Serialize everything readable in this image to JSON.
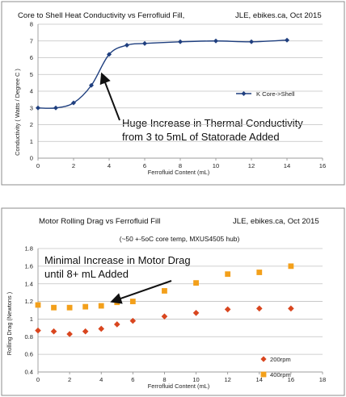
{
  "chart_data": [
    {
      "type": "line",
      "title": "Core to Shell Heat Conductivity vs Ferrofluid Fill,",
      "credit": "JLE, ebikes.ca, Oct 2015",
      "xlabel": "Ferrofluid Content (mL)",
      "ylabel": "Conductivity ( Watts / Degree C )",
      "xlim": [
        0,
        16
      ],
      "ylim": [
        0,
        8
      ],
      "xticks": [
        "0",
        "2",
        "4",
        "6",
        "8",
        "10",
        "12",
        "14",
        "16"
      ],
      "yticks": [
        "0",
        "1",
        "2",
        "3",
        "4",
        "5",
        "6",
        "7",
        "8"
      ],
      "grid": "horizontal",
      "legend_position": "right",
      "series": [
        {
          "name": "K Core->Shell",
          "color": "#1f3f7f",
          "marker": "diamond",
          "x": [
            0,
            1,
            2,
            3,
            4,
            5,
            6,
            8,
            10,
            12,
            14
          ],
          "y": [
            3.0,
            3.0,
            3.3,
            4.35,
            6.2,
            6.75,
            6.85,
            6.95,
            7.0,
            6.95,
            7.05
          ]
        }
      ],
      "annotation": {
        "lines": [
          "Huge Increase in Thermal Conductivity",
          "from 3 to 5mL of Statorade Added"
        ],
        "arrow_to": [
          3.6,
          5.0
        ]
      }
    },
    {
      "type": "scatter",
      "title": "Motor Rolling Drag vs Ferrofluid Fill",
      "credit": "JLE, ebikes.ca, Oct 2015",
      "subtitle": "(~50 +-5oC core temp, MXUS4505 hub)",
      "xlabel": "Ferrofluid Content (mL)",
      "ylabel": "Rolling Drag (Newtons )",
      "xlim": [
        0,
        18
      ],
      "ylim": [
        0.4,
        1.8
      ],
      "xticks": [
        "0",
        "2",
        "4",
        "6",
        "8",
        "10",
        "12",
        "14",
        "16",
        "18"
      ],
      "yticks": [
        "0.4",
        "0.6",
        "0.8",
        "1",
        "1.2",
        "1.4",
        "1.6",
        "1.8"
      ],
      "grid": "horizontal",
      "legend_position": "bottom-right",
      "series": [
        {
          "name": "200rpm",
          "color": "#d9461f",
          "marker": "diamond",
          "x": [
            0,
            1,
            2,
            3,
            4,
            5,
            6,
            8,
            10,
            12,
            14,
            16
          ],
          "y": [
            0.87,
            0.86,
            0.83,
            0.86,
            0.89,
            0.94,
            0.98,
            1.03,
            1.07,
            1.11,
            1.12,
            1.12
          ]
        },
        {
          "name": "400rpm",
          "color": "#f3a01b",
          "marker": "square",
          "x": [
            0,
            1,
            2,
            3,
            4,
            5,
            6,
            8,
            10,
            12,
            14,
            16
          ],
          "y": [
            1.16,
            1.13,
            1.13,
            1.14,
            1.15,
            1.19,
            1.2,
            1.32,
            1.41,
            1.51,
            1.53,
            1.6
          ]
        }
      ],
      "annotation": {
        "lines": [
          "Minimal Increase in Motor Drag",
          "until 8+ mL Added"
        ],
        "arrow_to": [
          4.7,
          1.2
        ]
      }
    }
  ]
}
